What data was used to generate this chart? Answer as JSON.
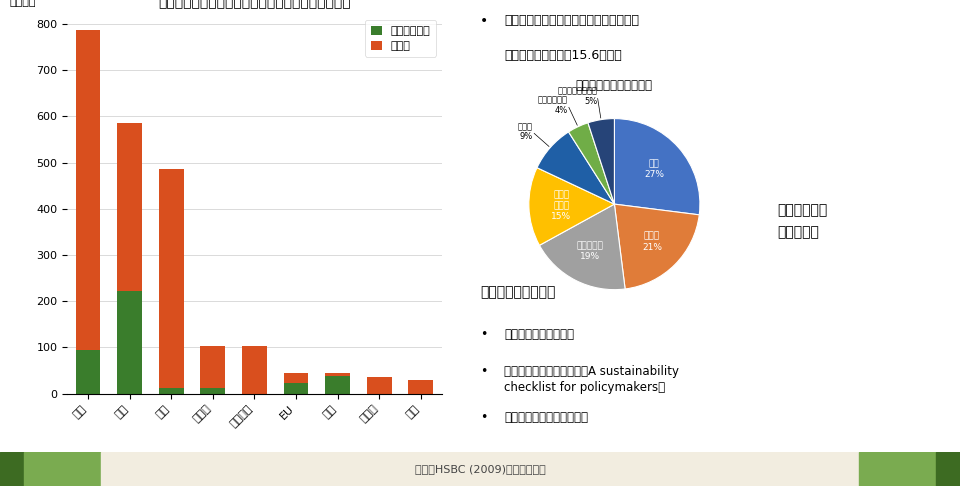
{
  "bar_title": "世界金融危機に対する財政出動と「グリーン」部分",
  "bar_ylabel": "億米ドル",
  "bar_categories": [
    "米国",
    "中国",
    "日本",
    "ドイツ",
    "イタリア",
    "EU",
    "韓国",
    "カナダ",
    "英国"
  ],
  "bar_green": [
    95,
    221,
    13,
    13,
    0,
    22,
    38,
    0,
    0
  ],
  "bar_other": [
    692,
    364,
    472,
    90,
    103,
    22,
    7,
    37,
    30
  ],
  "bar_green_color": "#3a7d2c",
  "bar_other_color": "#d94f1e",
  "bar_ylim": [
    0,
    820
  ],
  "bar_yticks": [
    0,
    100,
    200,
    300,
    400,
    500,
    600,
    700,
    800
  ],
  "legend_green": "グリーン部分",
  "legend_other": "その他",
  "pie_title": "「グリーン」部分の内訳",
  "pie_labels_inside": [
    "鉄道\n27%",
    "電力網\n21%",
    "水・廃棄物\n19%",
    "建物の\n省エネ\n15%"
  ],
  "pie_labels_outside": [
    "再エネ\n9%",
    "低炭素自動車\n4%",
    "その他低炭素技術\n5%"
  ],
  "pie_outside_names": [
    "再エネ",
    "低炭素自動車",
    "その他低炭素技術"
  ],
  "pie_outside_pcts": [
    "9%",
    "4%",
    "5%"
  ],
  "pie_values": [
    27,
    21,
    19,
    15,
    9,
    4,
    5
  ],
  "pie_colors": [
    "#4472c4",
    "#e07c39",
    "#a0a0a0",
    "#ffc000",
    "#1f5fa6",
    "#70ad47",
    "#264478"
  ],
  "bullet1_bullet": "•",
  "bullet1_line1": "世界金融危機に対する財政出動に占める",
  "bullet1_line2": "「グリーン」部分は15.6％のみ",
  "rebound_text": "リバウンドを\n止められず",
  "prescription_title": "処方箋はすでに存在",
  "bullets": [
    "欧州グリーンディール",
    "世界銀行のガイドライン「A sustainability\nchecklist for policymakers」",
    "国際エネルギー機関の提言"
  ],
  "footer": "出所：HSBC (2009)をもとに作成",
  "bg_color": "#ffffff"
}
